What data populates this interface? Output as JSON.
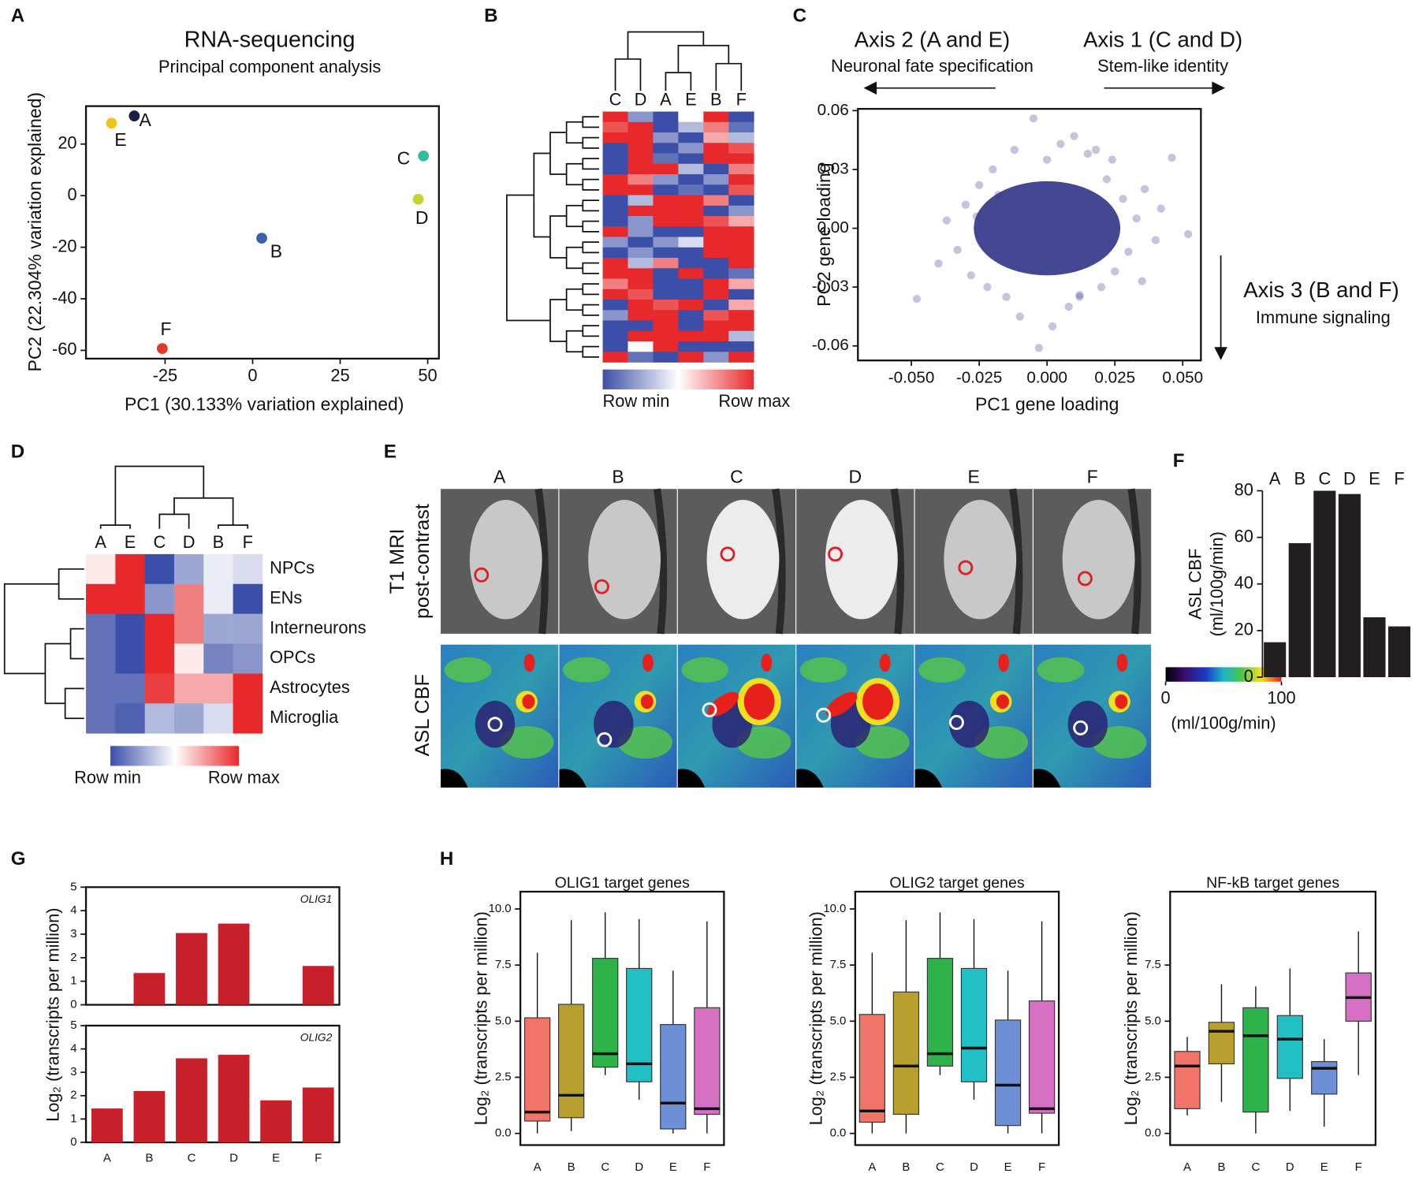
{
  "chart_data": [
    {
      "type": "scatter",
      "panel": "A",
      "title": "RNA-sequencing",
      "subtitle": "Principal component analysis",
      "x_label": "PC1  (30.133% variation explained)",
      "y_label": "PC2  (22.304% variation explained)",
      "xlim": [
        -47.6,
        53.2
      ],
      "ylim": [
        -63.2,
        34.7
      ],
      "xticks": [
        -25,
        0,
        25,
        50
      ],
      "yticks": [
        20,
        0,
        -20,
        -40,
        -60
      ],
      "points": [
        {
          "label": "A",
          "x": -33.8,
          "y": 30.9,
          "color": "#1b1f4a"
        },
        {
          "label": "E",
          "x": -40.3,
          "y": 28.1,
          "color": "#f2c31b"
        },
        {
          "label": "C",
          "x": 48.8,
          "y": 15.4,
          "color": "#2fbf9c"
        },
        {
          "label": "D",
          "x": 47.3,
          "y": -1.4,
          "color": "#c3d630"
        },
        {
          "label": "B",
          "x": 2.6,
          "y": -16.5,
          "color": "#3c5db0"
        },
        {
          "label": "F",
          "x": -25.8,
          "y": -59.3,
          "color": "#e03a24"
        }
      ]
    },
    {
      "type": "heatmap",
      "panel": "B",
      "columns": [
        "C",
        "D",
        "A",
        "E",
        "B",
        "F"
      ],
      "legend_labels": [
        "Row min",
        "Row max"
      ],
      "values": [
        [
          1,
          0.2,
          0,
          0.5,
          1,
          0
        ],
        [
          0.9,
          1,
          0,
          0.3,
          0.8,
          0.1
        ],
        [
          1,
          1,
          0.2,
          0,
          0.7,
          0.3
        ],
        [
          0,
          1,
          0,
          0.2,
          1,
          0.9
        ],
        [
          0,
          1,
          0.1,
          0,
          1,
          1
        ],
        [
          0,
          1,
          1,
          0.3,
          0,
          0.8
        ],
        [
          1,
          0.8,
          0.2,
          0,
          0.2,
          1
        ],
        [
          1,
          1,
          0,
          0.1,
          0,
          0.9
        ],
        [
          0,
          0.3,
          1,
          1,
          0.8,
          0
        ],
        [
          0,
          1,
          1,
          1,
          0,
          0.2
        ],
        [
          0,
          0.2,
          1,
          1,
          0.9,
          0.7
        ],
        [
          1,
          0.2,
          0,
          0,
          1,
          1
        ],
        [
          0.2,
          0,
          0.2,
          0.4,
          1,
          1
        ],
        [
          0,
          0.2,
          0,
          0,
          1,
          1
        ],
        [
          1,
          0.3,
          0.8,
          0,
          0,
          1
        ],
        [
          1,
          1,
          0,
          1,
          0,
          0.1
        ],
        [
          0.8,
          1,
          0,
          0,
          1,
          0.7
        ],
        [
          1,
          0.9,
          0,
          0,
          1,
          0
        ],
        [
          0,
          1,
          0.9,
          1,
          0,
          0.7
        ],
        [
          0.2,
          1,
          1,
          0,
          0.9,
          1
        ],
        [
          0,
          0,
          1,
          0,
          1,
          1
        ],
        [
          0,
          1,
          1,
          1,
          1,
          0.3
        ],
        [
          0,
          0.5,
          1,
          0,
          0,
          0
        ],
        [
          1,
          0.1,
          0,
          1,
          0.2,
          1
        ]
      ]
    },
    {
      "type": "scatter",
      "panel": "C",
      "x_label": "PC1 gene loading",
      "y_label": "PC2 gene loading",
      "color": "#3a3d8c",
      "annotations": [
        "Axis 2 (A and E)",
        "Neuronal fate specification",
        "Axis 1 (C and D)",
        "Stem-like identity",
        "Axis 3 (B and F)",
        "Immune signaling"
      ],
      "xlim": [
        -0.0697,
        0.0567
      ],
      "ylim": [
        -0.0674,
        0.0609
      ],
      "xticks": [
        {
          "value": -0.05,
          "label": "-0.050"
        },
        {
          "value": -0.025,
          "label": "-0.025"
        },
        {
          "value": 0,
          "label": "0.000"
        },
        {
          "value": 0.025,
          "label": "0.025"
        },
        {
          "value": 0.05,
          "label": "0.050"
        }
      ],
      "yticks": [
        0.06,
        0.03,
        {
          "value": 0,
          "label": "0.00"
        },
        -0.03,
        -0.06
      ],
      "x": [
        -0.048,
        -0.037,
        -0.033,
        -0.03,
        -0.028,
        -0.025,
        -0.022,
        -0.02,
        -0.018,
        -0.015,
        -0.012,
        -0.01,
        -0.005,
        -0.003,
        0,
        0.002,
        0.005,
        0.008,
        0.01,
        0.012,
        0.015,
        0.018,
        0.02,
        0.022,
        0.025,
        0.028,
        0.03,
        0.033,
        0.036,
        0.04,
        0.042,
        0.052,
        0.046,
        0.035,
        -0.04,
        -0.026,
        0.024,
        0.012
      ],
      "y": [
        -0.036,
        0.004,
        -0.011,
        0.012,
        -0.024,
        0.022,
        -0.03,
        0.03,
        0.017,
        -0.035,
        0.04,
        -0.045,
        0.056,
        -0.061,
        0.035,
        -0.05,
        0.043,
        -0.04,
        0.047,
        -0.034,
        0.038,
        0.04,
        -0.03,
        0.025,
        -0.022,
        0.015,
        -0.012,
        0.005,
        0.02,
        -0.006,
        0.01,
        -0.003,
        0.036,
        -0.027,
        -0.018,
        0.006,
        0.035,
        -0.035
      ]
    },
    {
      "type": "heatmap",
      "panel": "D",
      "columns": [
        "A",
        "E",
        "C",
        "D",
        "B",
        "F"
      ],
      "rows": [
        "NPCs",
        "ENs",
        "Interneurons",
        "OPCs",
        "Astrocytes",
        "Microglia"
      ],
      "legend_labels": [
        "Row min",
        "Row max"
      ],
      "values": [
        [
          0.55,
          1,
          0,
          0.25,
          0.45,
          0.4
        ],
        [
          1,
          1,
          0.2,
          0.8,
          0.45,
          0
        ],
        [
          0.1,
          0,
          1,
          0.8,
          0.25,
          0.25
        ],
        [
          0.1,
          0,
          1,
          0.55,
          0.15,
          0.2
        ],
        [
          0.1,
          0.1,
          0.95,
          0.7,
          0.7,
          1
        ],
        [
          0.1,
          0.05,
          0.3,
          0.25,
          0.4,
          1
        ]
      ]
    },
    {
      "type": "image",
      "panel": "E",
      "columns": [
        "A",
        "B",
        "C",
        "D",
        "E",
        "F"
      ],
      "row_labels": [
        "T1 MRI",
        "post-contrast",
        "ASL CBF"
      ],
      "colorbar": {
        "lim": [
          0,
          100
        ],
        "ticks": [
          0,
          100
        ],
        "label": "(ml/100g/min)"
      }
    },
    {
      "type": "bar",
      "panel": "F",
      "categories": [
        "A",
        "B",
        "C",
        "D",
        "E",
        "F"
      ],
      "values": [
        15,
        57.5,
        80,
        78.6,
        25.7,
        21.8
      ],
      "color": "#231f20",
      "y_label": [
        "ASL CBF",
        "(ml/100g/min)"
      ],
      "ylim": [
        0,
        80
      ],
      "yticks": [
        0,
        20,
        40,
        60,
        80
      ]
    },
    {
      "type": "bar",
      "panel": "G",
      "label": "OLIG1",
      "values": [
        0,
        1.35,
        3.05,
        3.45,
        0,
        1.65
      ],
      "color": "#c8202a",
      "y_label": "Log₂ (transcripts per million)",
      "ylim": [
        0,
        5
      ],
      "yticks": [
        0,
        1,
        2,
        3,
        4,
        5
      ]
    },
    {
      "type": "bar",
      "label": "OLIG2",
      "categories": [
        "A",
        "B",
        "C",
        "D",
        "E",
        "F"
      ],
      "values": [
        1.45,
        2.2,
        3.6,
        3.75,
        1.8,
        2.35
      ],
      "color": "#c8202a",
      "ylim": [
        0,
        5
      ],
      "yticks": [
        0,
        1,
        2,
        3,
        4,
        5
      ]
    },
    {
      "type": "box",
      "panel": "H",
      "title": "OLIG1 target genes",
      "y_label": "Log₂ (transcripts per million)",
      "categories": [
        "A",
        "B",
        "C",
        "D",
        "E",
        "F"
      ],
      "colors": [
        "#f07467",
        "#b8a030",
        "#2db34a",
        "#22bfc4",
        "#6c8fd6",
        "#d670c4"
      ],
      "ylim": [
        -0.52,
        10.77
      ],
      "yticks": [
        {
          "value": 0,
          "label": "0.0"
        },
        2.5,
        {
          "value": 5,
          "label": "5.0"
        },
        7.5,
        {
          "value": 10,
          "label": "10.0"
        }
      ],
      "boxes": [
        {
          "whislo": 0,
          "q1": 0.55,
          "med": 0.95,
          "q3": 5.15,
          "whishi": 8.05
        },
        {
          "whislo": 0.1,
          "q1": 0.7,
          "med": 1.7,
          "q3": 5.75,
          "whishi": 9.5
        },
        {
          "whislo": 2.6,
          "q1": 2.95,
          "med": 3.55,
          "q3": 7.8,
          "whishi": 9.85
        },
        {
          "whislo": 1.5,
          "q1": 2.3,
          "med": 3.1,
          "q3": 7.35,
          "whishi": 9.55
        },
        {
          "whislo": 0,
          "q1": 0.2,
          "med": 1.35,
          "q3": 4.85,
          "whishi": 7.25
        },
        {
          "whislo": 0,
          "q1": 0.85,
          "med": 1.1,
          "q3": 5.6,
          "whishi": 9.45
        }
      ]
    },
    {
      "type": "box",
      "title": "OLIG2 target genes",
      "y_label": "Log₂ (transcripts per million)",
      "categories": [
        "A",
        "B",
        "C",
        "D",
        "E",
        "F"
      ],
      "colors": [
        "#f07467",
        "#b8a030",
        "#2db34a",
        "#22bfc4",
        "#6c8fd6",
        "#d670c4"
      ],
      "ylim": [
        -0.52,
        10.77
      ],
      "yticks": [
        {
          "value": 0,
          "label": "0.0"
        },
        2.5,
        {
          "value": 5,
          "label": "5.0"
        },
        7.5,
        {
          "value": 10,
          "label": "10.0"
        }
      ],
      "boxes": [
        {
          "whislo": 0,
          "q1": 0.5,
          "med": 1.0,
          "q3": 5.3,
          "whishi": 8.05
        },
        {
          "whislo": 0,
          "q1": 0.85,
          "med": 3.0,
          "q3": 6.3,
          "whishi": 9.5
        },
        {
          "whislo": 2.6,
          "q1": 3.0,
          "med": 3.55,
          "q3": 7.8,
          "whishi": 9.85
        },
        {
          "whislo": 1.5,
          "q1": 2.3,
          "med": 3.8,
          "q3": 7.35,
          "whishi": 9.55
        },
        {
          "whislo": 0,
          "q1": 0.35,
          "med": 2.15,
          "q3": 5.05,
          "whishi": 7.25
        },
        {
          "whislo": 0,
          "q1": 0.9,
          "med": 1.1,
          "q3": 5.9,
          "whishi": 9.45
        }
      ]
    },
    {
      "type": "box",
      "title": "NF-kB target genes",
      "y_label": "Log₂ (transcripts per million)",
      "categories": [
        "A",
        "B",
        "C",
        "D",
        "E",
        "F"
      ],
      "colors": [
        "#f07467",
        "#b8a030",
        "#2db34a",
        "#22bfc4",
        "#6c8fd6",
        "#d670c4"
      ],
      "ylim": [
        -0.52,
        10.77
      ],
      "yticks": [
        {
          "value": 0,
          "label": "0.0"
        },
        2.5,
        {
          "value": 5,
          "label": "5.0"
        },
        7.5
      ],
      "boxes": [
        {
          "whislo": 0.8,
          "q1": 1.1,
          "med": 3.0,
          "q3": 3.65,
          "whishi": 4.3
        },
        {
          "whislo": 1.4,
          "q1": 3.1,
          "med": 4.55,
          "q3": 4.95,
          "whishi": 6.65
        },
        {
          "whislo": 0,
          "q1": 0.95,
          "med": 4.35,
          "q3": 5.6,
          "whishi": 6.55
        },
        {
          "whislo": 1.0,
          "q1": 2.45,
          "med": 4.2,
          "q3": 5.25,
          "whishi": 7.35
        },
        {
          "whislo": 0.3,
          "q1": 1.75,
          "med": 2.9,
          "q3": 3.2,
          "whishi": 4.2
        },
        {
          "whislo": 2.6,
          "q1": 5.0,
          "med": 6.05,
          "q3": 7.15,
          "whishi": 9.0
        }
      ]
    }
  ]
}
